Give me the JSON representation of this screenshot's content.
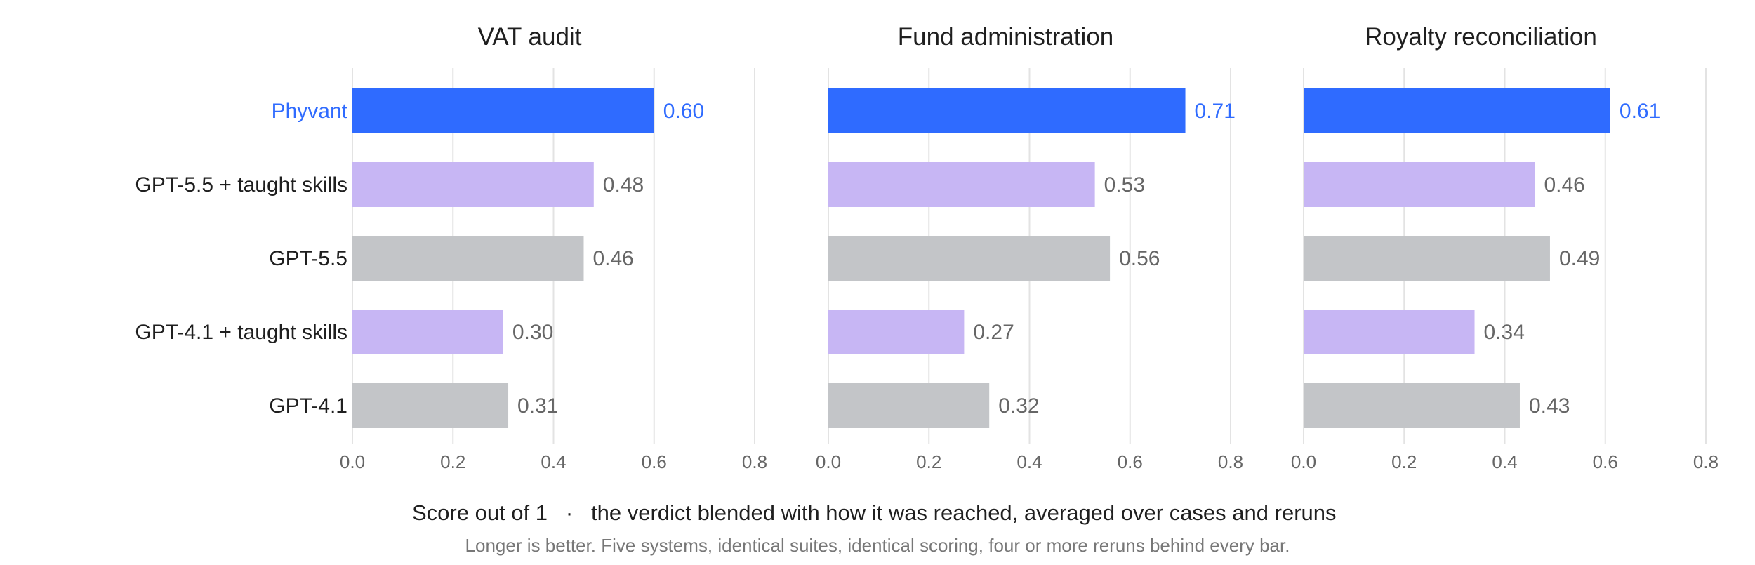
{
  "chart_data": [
    {
      "type": "bar",
      "orientation": "horizontal",
      "title": "VAT audit",
      "categories": [
        "Phyvant",
        "GPT-5.5 + taught skills",
        "GPT-5.5",
        "GPT-4.1 + taught skills",
        "GPT-4.1"
      ],
      "values": [
        0.6,
        0.48,
        0.46,
        0.3,
        0.31
      ],
      "value_labels": [
        "0.60",
        "0.48",
        "0.46",
        "0.30",
        "0.31"
      ],
      "xlim": [
        0,
        0.8
      ],
      "xticks": [
        "0.0",
        "0.2",
        "0.4",
        "0.6",
        "0.8"
      ],
      "grid": true
    },
    {
      "type": "bar",
      "orientation": "horizontal",
      "title": "Fund administration",
      "categories": [
        "Phyvant",
        "GPT-5.5 + taught skills",
        "GPT-5.5",
        "GPT-4.1 + taught skills",
        "GPT-4.1"
      ],
      "values": [
        0.71,
        0.53,
        0.56,
        0.27,
        0.32
      ],
      "value_labels": [
        "0.71",
        "0.53",
        "0.56",
        "0.27",
        "0.32"
      ],
      "xlim": [
        0,
        0.8
      ],
      "xticks": [
        "0.0",
        "0.2",
        "0.4",
        "0.6",
        "0.8"
      ],
      "grid": true
    },
    {
      "type": "bar",
      "orientation": "horizontal",
      "title": "Royalty reconciliation",
      "categories": [
        "Phyvant",
        "GPT-5.5 + taught skills",
        "GPT-5.5",
        "GPT-4.1 + taught skills",
        "GPT-4.1"
      ],
      "values": [
        0.61,
        0.46,
        0.49,
        0.34,
        0.43
      ],
      "value_labels": [
        "0.61",
        "0.46",
        "0.49",
        "0.34",
        "0.43"
      ],
      "xlim": [
        0,
        0.8
      ],
      "xticks": [
        "0.0",
        "0.2",
        "0.4",
        "0.6",
        "0.8"
      ],
      "grid": true
    }
  ],
  "category_colors": [
    "#2f6bff",
    "#c7b6f4",
    "#c3c5c8",
    "#c7b6f4",
    "#c3c5c8"
  ],
  "highlight_color": "#2f6bff",
  "caption": {
    "main": "Score out of 1",
    "separator": "·",
    "detail": "the verdict blended with how it was reached, averaged over cases and reruns"
  },
  "note": "Longer is better. Five systems, identical suites, identical scoring, four or more reruns behind every bar."
}
